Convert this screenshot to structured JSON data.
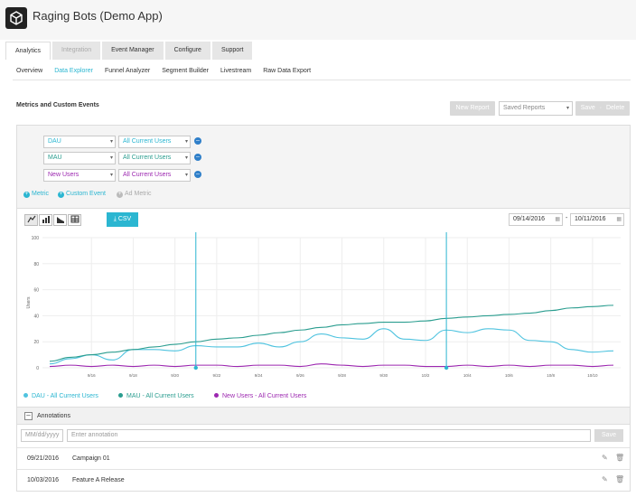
{
  "app": {
    "title": "Raging Bots (Demo App)"
  },
  "main_tabs": [
    {
      "label": "Analytics",
      "state": "active"
    },
    {
      "label": "Integration",
      "state": "disabled"
    },
    {
      "label": "Event Manager",
      "state": "normal"
    },
    {
      "label": "Configure",
      "state": "normal"
    },
    {
      "label": "Support",
      "state": "normal"
    }
  ],
  "sub_tabs": [
    {
      "label": "Overview",
      "active": false
    },
    {
      "label": "Data Explorer",
      "active": true
    },
    {
      "label": "Funnel Analyzer",
      "active": false
    },
    {
      "label": "Segment Builder",
      "active": false
    },
    {
      "label": "Livestream",
      "active": false
    },
    {
      "label": "Raw Data Export",
      "active": false
    }
  ],
  "section": {
    "title": "Metrics and Custom Events",
    "new_report": "New Report",
    "saved_reports": "Saved Reports",
    "save": "Save",
    "delete": "Delete"
  },
  "metrics": [
    {
      "metric": "DAU",
      "segment": "All Current Users",
      "color": "#2bb6d1"
    },
    {
      "metric": "MAU",
      "segment": "All Current Users",
      "color": "#2a9d8f"
    },
    {
      "metric": "New Users",
      "segment": "All Current Users",
      "color": "#9c27b0"
    }
  ],
  "add_links": {
    "metric": "Metric",
    "custom_event": "Custom Event",
    "ad_metric": "Ad Metric"
  },
  "toolbar": {
    "csv": "CSV",
    "start_date": "09/14/2016",
    "end_date": "10/11/2016",
    "sep": "-"
  },
  "chart_data": {
    "type": "line",
    "ylabel": "Users",
    "ylim": [
      0,
      100
    ],
    "y_ticks": [
      "100",
      "80",
      "60",
      "40",
      "20",
      "0"
    ],
    "x_ticks": [
      "9/16",
      "9/18",
      "9/20",
      "9/22",
      "9/24",
      "9/26",
      "9/28",
      "9/30",
      "10/2",
      "10/4",
      "10/6",
      "10/8",
      "10/10"
    ],
    "x": [
      "9/14",
      "9/15",
      "9/16",
      "9/17",
      "9/18",
      "9/19",
      "9/20",
      "9/21",
      "9/22",
      "9/23",
      "9/24",
      "9/25",
      "9/26",
      "9/27",
      "9/28",
      "9/29",
      "9/30",
      "10/1",
      "10/2",
      "10/3",
      "10/4",
      "10/5",
      "10/6",
      "10/7",
      "10/8",
      "10/9",
      "10/10",
      "10/11"
    ],
    "series": [
      {
        "name": "DAU - All Current Users",
        "color": "#4fc3df",
        "values": [
          3,
          7,
          10,
          6,
          14,
          14,
          13,
          17,
          16,
          16,
          19,
          16,
          20,
          26,
          23,
          22,
          30,
          22,
          21,
          29,
          27,
          30,
          29,
          21,
          20,
          14,
          12,
          13
        ]
      },
      {
        "name": "MAU - All Current Users",
        "color": "#2a9d8f",
        "values": [
          5,
          8,
          10,
          12,
          14,
          16,
          18,
          20,
          22,
          23,
          25,
          27,
          29,
          31,
          33,
          34,
          35,
          35,
          36,
          38,
          39,
          40,
          41,
          42,
          44,
          46,
          47,
          48
        ]
      },
      {
        "name": "New Users - All Current Users",
        "color": "#9c27b0",
        "values": [
          1,
          2,
          1,
          2,
          1,
          2,
          1,
          2,
          2,
          1,
          2,
          2,
          1,
          3,
          2,
          1,
          2,
          2,
          1,
          1,
          2,
          1,
          2,
          1,
          2,
          2,
          1,
          2
        ]
      }
    ],
    "annotation_markers": [
      "9/21",
      "10/3"
    ],
    "grid": true
  },
  "annotations": {
    "title": "Annotations",
    "date_placeholder": "MM/dd/yyyy",
    "text_placeholder": "Enter annotation",
    "save": "Save",
    "rows": [
      {
        "date": "09/21/2016",
        "text": "Campaign 01"
      },
      {
        "date": "10/03/2016",
        "text": "Feature A Release"
      }
    ]
  }
}
